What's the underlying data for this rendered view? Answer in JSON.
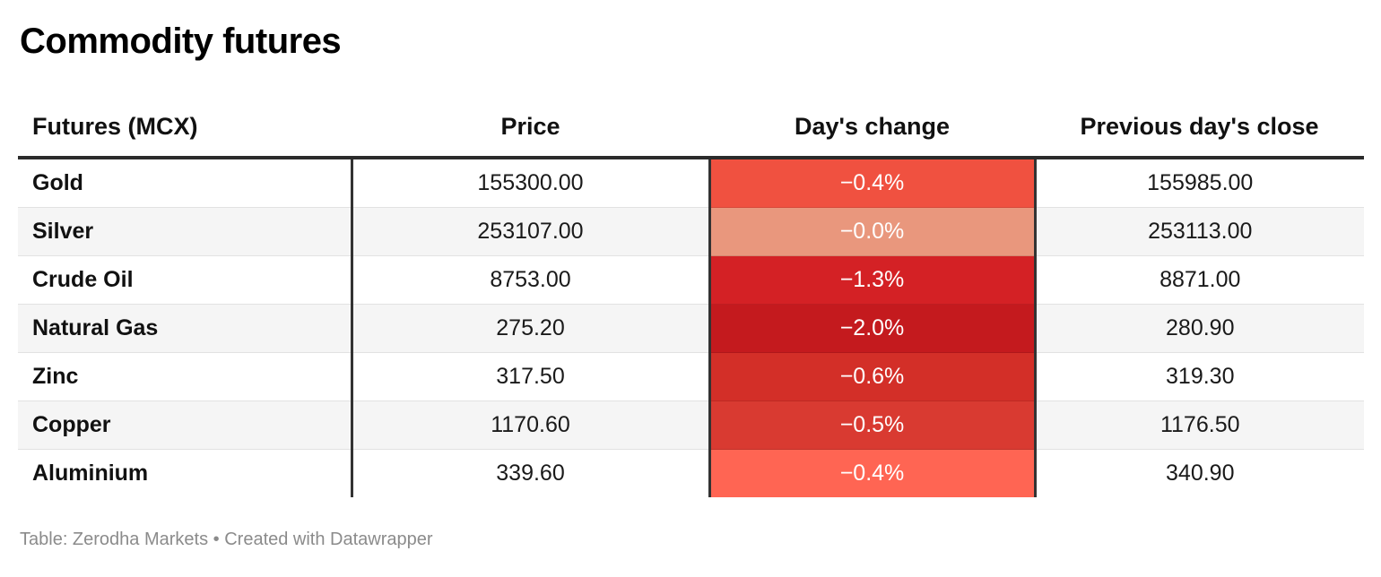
{
  "title": "Commodity futures",
  "footer": "Table: Zerodha Markets • Created with Datawrapper",
  "style": {
    "rule_color": "#2b2b2b",
    "divider_color": "#333333",
    "zebra_color": "#f5f5f5",
    "heatmap_text_color": "#ffffff",
    "footer_color": "#8b8b8b"
  },
  "chart_data": {
    "type": "table",
    "title": "Commodity futures",
    "source": "Zerodha Markets",
    "tool": "Datawrapper",
    "columns": [
      "Futures (MCX)",
      "Price",
      "Day's change",
      "Previous day's close"
    ],
    "rows": [
      {
        "futures": "Gold",
        "price": "155300.00",
        "days_change": "−0.4%",
        "days_change_value": -0.4,
        "cell_color": "#f05140",
        "prev_close": "155985.00"
      },
      {
        "futures": "Silver",
        "price": "253107.00",
        "days_change": "−0.0%",
        "days_change_value": -0.0,
        "cell_color": "#e9977d",
        "prev_close": "253113.00"
      },
      {
        "futures": "Crude Oil",
        "price": "8753.00",
        "days_change": "−1.3%",
        "days_change_value": -1.3,
        "cell_color": "#d42125",
        "prev_close": "8871.00"
      },
      {
        "futures": "Natural Gas",
        "price": "275.20",
        "days_change": "−2.0%",
        "days_change_value": -2.0,
        "cell_color": "#c41a1e",
        "prev_close": "280.90"
      },
      {
        "futures": "Zinc",
        "price": "317.50",
        "days_change": "−0.6%",
        "days_change_value": -0.6,
        "cell_color": "#d32f28",
        "prev_close": "319.30"
      },
      {
        "futures": "Copper",
        "price": "1170.60",
        "days_change": "−0.5%",
        "days_change_value": -0.5,
        "cell_color": "#d93a31",
        "prev_close": "1176.50"
      },
      {
        "futures": "Aluminium",
        "price": "339.60",
        "days_change": "−0.4%",
        "days_change_value": -0.4,
        "cell_color": "#ff6553",
        "prev_close": "340.90"
      }
    ]
  }
}
